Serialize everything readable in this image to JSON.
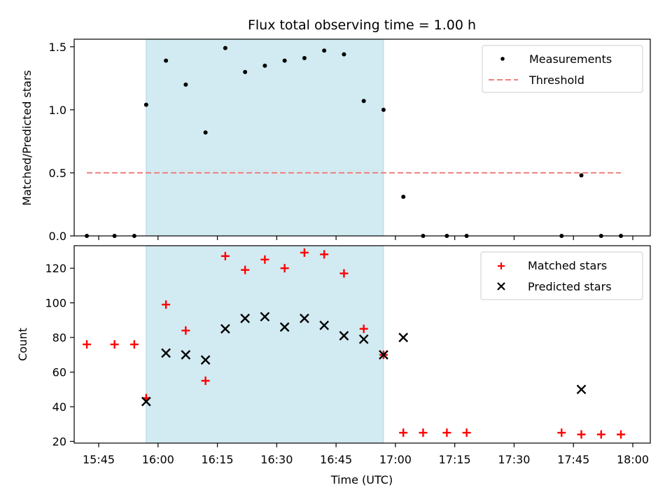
{
  "chart_data": {
    "title": "Flux total observing time = 1.00 h",
    "xlabel": "Time (UTC)",
    "x_tick_labels": [
      "15:45",
      "16:00",
      "16:15",
      "16:30",
      "16:45",
      "17:00",
      "17:15",
      "17:30",
      "17:45",
      "18:00"
    ],
    "shaded_interval": {
      "start": "15:57",
      "end": "16:57",
      "color": "#add8e6"
    },
    "panels": [
      {
        "type": "scatter",
        "ylabel": "Matched/Predicted stars",
        "ylim": [
          0,
          1.56
        ],
        "y_ticks": [
          "0.0",
          "0.5",
          "1.0",
          "1.5"
        ],
        "legend_position": "top-right",
        "series": [
          {
            "name": "Measurements",
            "marker": "dot",
            "color": "#000000",
            "points": [
              [
                "15:42",
                0.0
              ],
              [
                "15:49",
                0.0
              ],
              [
                "15:54",
                0.0
              ],
              [
                "15:57",
                1.04
              ],
              [
                "16:02",
                1.39
              ],
              [
                "16:07",
                1.2
              ],
              [
                "16:12",
                0.82
              ],
              [
                "16:17",
                1.49
              ],
              [
                "16:22",
                1.3
              ],
              [
                "16:27",
                1.35
              ],
              [
                "16:32",
                1.39
              ],
              [
                "16:37",
                1.41
              ],
              [
                "16:42",
                1.47
              ],
              [
                "16:47",
                1.44
              ],
              [
                "16:52",
                1.07
              ],
              [
                "16:57",
                1.0
              ],
              [
                "17:02",
                0.31
              ],
              [
                "17:07",
                0.0
              ],
              [
                "17:13",
                0.0
              ],
              [
                "17:18",
                0.0
              ],
              [
                "17:42",
                0.0
              ],
              [
                "17:47",
                0.48
              ],
              [
                "17:52",
                0.0
              ],
              [
                "17:57",
                0.0
              ]
            ]
          },
          {
            "name": "Threshold",
            "style": "dashed-line",
            "color": "#f08080",
            "points": [
              [
                "15:42",
                0.5
              ],
              [
                "17:57",
                0.5
              ]
            ]
          }
        ]
      },
      {
        "type": "scatter",
        "ylabel": "Count",
        "ylim": [
          19,
          133
        ],
        "y_ticks": [
          "20",
          "40",
          "60",
          "80",
          "100",
          "120"
        ],
        "legend_position": "top-right",
        "series": [
          {
            "name": "Matched stars",
            "marker": "plus",
            "color": "#ff0000",
            "points": [
              [
                "15:42",
                76
              ],
              [
                "15:49",
                76
              ],
              [
                "15:54",
                76
              ],
              [
                "15:57",
                45
              ],
              [
                "16:02",
                99
              ],
              [
                "16:07",
                84
              ],
              [
                "16:12",
                55
              ],
              [
                "16:17",
                127
              ],
              [
                "16:22",
                119
              ],
              [
                "16:27",
                125
              ],
              [
                "16:32",
                120
              ],
              [
                "16:37",
                129
              ],
              [
                "16:42",
                128
              ],
              [
                "16:47",
                117
              ],
              [
                "16:52",
                85
              ],
              [
                "16:57",
                70
              ],
              [
                "17:02",
                25
              ],
              [
                "17:07",
                25
              ],
              [
                "17:13",
                25
              ],
              [
                "17:18",
                25
              ],
              [
                "17:42",
                25
              ],
              [
                "17:47",
                24
              ],
              [
                "17:52",
                24
              ],
              [
                "17:57",
                24
              ]
            ]
          },
          {
            "name": "Predicted stars",
            "marker": "x",
            "color": "#000000",
            "points": [
              [
                "15:57",
                43
              ],
              [
                "16:02",
                71
              ],
              [
                "16:07",
                70
              ],
              [
                "16:12",
                67
              ],
              [
                "16:17",
                85
              ],
              [
                "16:22",
                91
              ],
              [
                "16:27",
                92
              ],
              [
                "16:32",
                86
              ],
              [
                "16:37",
                91
              ],
              [
                "16:42",
                87
              ],
              [
                "16:47",
                81
              ],
              [
                "16:52",
                79
              ],
              [
                "16:57",
                70
              ],
              [
                "17:02",
                80
              ],
              [
                "17:47",
                50
              ]
            ]
          }
        ]
      }
    ]
  }
}
